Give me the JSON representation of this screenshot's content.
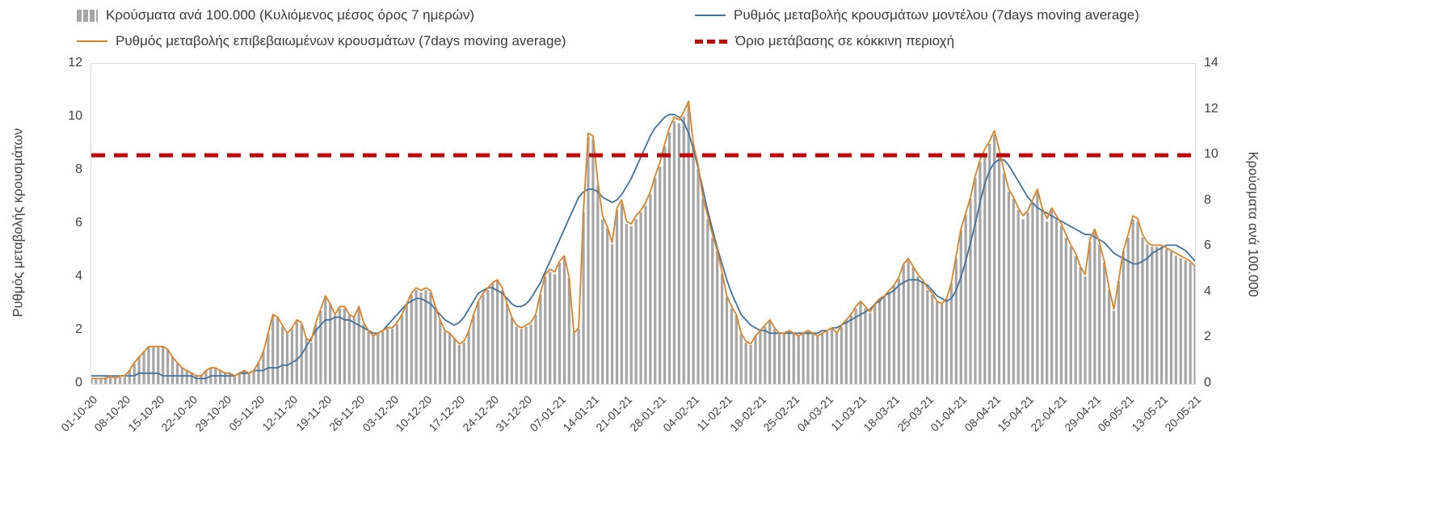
{
  "legend": [
    {
      "label": "Κρούσματα ανά 100.000 (Κυλιόμενος μέσος όρος 7 ημερών)",
      "type": "bar",
      "color": "#a6a6a6"
    },
    {
      "label": "Ρυθμός μεταβολής κρουσμάτων μοντέλου (7days moving average)",
      "type": "line",
      "color": "#41719c"
    },
    {
      "label": "Ρυθμός μεταβολής επιβεβαιωμένων κρουσμάτων (7days moving average)",
      "type": "line",
      "color": "#dd8327"
    },
    {
      "label": "Όριο μετάβασης σε κόκκινη περιοχή",
      "type": "dashed",
      "color": "#c00000"
    }
  ],
  "chart_data": {
    "type": "bar",
    "subtype": "combo-bar-and-lines",
    "points": 232,
    "x_start": "01-10-20",
    "x_end": "20-05-21",
    "x_tick_every_days": 7,
    "x_tick_labels": [
      "01-10-20",
      "08-10-20",
      "15-10-20",
      "22-10-20",
      "29-10-20",
      "05-11-20",
      "12-11-20",
      "19-11-20",
      "26-11-20",
      "03-12-20",
      "10-12-20",
      "17-12-20",
      "24-12-20",
      "31-12-20",
      "07-01-21",
      "14-01-21",
      "21-01-21",
      "28-01-21",
      "04-02-21",
      "11-02-21",
      "18-02-21",
      "25-02-21",
      "04-03-21",
      "11-03-21",
      "18-03-21",
      "25-03-21",
      "01-04-21",
      "08-04-21",
      "15-04-21",
      "22-04-21",
      "29-04-21",
      "06-05-21",
      "13-05-21",
      "20-05-21"
    ],
    "left_axis": {
      "title": "Ρυθμός μεταβολής κρουσμάτων",
      "range": [
        0,
        12
      ],
      "ticks": [
        0,
        2,
        4,
        6,
        8,
        10,
        12
      ]
    },
    "right_axis": {
      "title": "Κρούσματα ανά 100.000",
      "range": [
        0,
        14
      ],
      "ticks": [
        0,
        2,
        4,
        6,
        8,
        10,
        12,
        14
      ]
    },
    "grid": false,
    "legend_position": "top",
    "threshold": {
      "label": "Όριο μετάβασης σε κόκκινη περιοχή",
      "axis": "right",
      "value_right_axis": 10,
      "value_left_axis": 8.57,
      "color": "#c00000"
    },
    "series": [
      {
        "name": "Κρούσματα ανά 100.000 (Κυλιόμενος μέσος όρος 7 ημερών)",
        "type": "bar",
        "axis": "right",
        "color": "#a6a6a6",
        "values": [
          0.2,
          0.2,
          0.2,
          0.3,
          0.3,
          0.3,
          0.3,
          0.3,
          0.6,
          0.9,
          1.2,
          1.4,
          1.6,
          1.6,
          1.6,
          1.6,
          1.5,
          1.2,
          0.9,
          0.7,
          0.6,
          0.5,
          0.4,
          0.4,
          0.6,
          0.7,
          0.7,
          0.6,
          0.5,
          0.5,
          0.4,
          0.5,
          0.6,
          0.5,
          0.6,
          0.9,
          1.4,
          2.2,
          3.0,
          2.9,
          2.5,
          2.2,
          2.4,
          2.8,
          2.6,
          2.0,
          1.8,
          2.6,
          3.2,
          3.8,
          3.5,
          3.0,
          3.3,
          3.3,
          3.0,
          2.9,
          3.3,
          2.6,
          2.3,
          2.1,
          2.2,
          2.3,
          2.4,
          2.4,
          2.6,
          3.0,
          3.5,
          3.9,
          4.1,
          4.0,
          4.1,
          4.0,
          3.3,
          2.8,
          2.3,
          2.2,
          2.0,
          1.7,
          1.8,
          2.3,
          3.0,
          3.6,
          3.9,
          4.1,
          4.4,
          4.5,
          4.1,
          3.5,
          2.9,
          2.5,
          2.4,
          2.5,
          2.6,
          3.0,
          3.9,
          4.7,
          4.9,
          4.8,
          5.3,
          5.5,
          4.6,
          2.2,
          2.4,
          7.5,
          10.8,
          10.7,
          8.7,
          7.2,
          6.8,
          6.1,
          7.6,
          7.9,
          7.0,
          6.9,
          7.2,
          7.5,
          7.8,
          8.3,
          9.0,
          9.5,
          10.4,
          11.0,
          11.5,
          11.4,
          11.7,
          12.2,
          10.4,
          9.4,
          8.1,
          7.2,
          6.4,
          5.8,
          4.8,
          3.8,
          3.3,
          3.0,
          2.2,
          1.8,
          1.7,
          2.1,
          2.3,
          2.5,
          2.8,
          2.4,
          2.2,
          2.2,
          2.3,
          2.2,
          2.1,
          2.2,
          2.3,
          2.2,
          2.1,
          2.2,
          2.3,
          2.4,
          2.2,
          2.5,
          2.8,
          3.0,
          3.3,
          3.6,
          3.3,
          3.1,
          3.5,
          3.7,
          3.8,
          4.0,
          4.3,
          4.6,
          5.2,
          5.4,
          5.1,
          4.7,
          4.5,
          4.1,
          3.9,
          3.6,
          3.5,
          3.7,
          4.4,
          5.5,
          6.7,
          7.4,
          8.1,
          9.0,
          9.7,
          10.1,
          10.5,
          10.9,
          10.1,
          9.2,
          8.4,
          8.1,
          7.6,
          7.2,
          7.5,
          7.9,
          8.4,
          7.6,
          7.1,
          7.6,
          7.2,
          6.9,
          6.4,
          6.0,
          5.6,
          5.1,
          4.7,
          6.2,
          6.7,
          6.1,
          5.3,
          4.1,
          3.2,
          4.5,
          5.8,
          6.4,
          7.2,
          7.1,
          6.4,
          6.1,
          6.0,
          6.0,
          6.0,
          5.9,
          5.8,
          5.6,
          5.5,
          5.4,
          5.3,
          5.1
        ]
      },
      {
        "name": "Ρυθμός μεταβολής κρουσμάτων μοντέλου (7days moving average)",
        "type": "line",
        "axis": "left",
        "color": "#41719c",
        "values": [
          0.3,
          0.3,
          0.3,
          0.3,
          0.3,
          0.3,
          0.3,
          0.3,
          0.3,
          0.3,
          0.4,
          0.4,
          0.4,
          0.4,
          0.4,
          0.3,
          0.3,
          0.3,
          0.3,
          0.3,
          0.3,
          0.3,
          0.2,
          0.2,
          0.2,
          0.3,
          0.3,
          0.3,
          0.3,
          0.3,
          0.3,
          0.4,
          0.4,
          0.4,
          0.5,
          0.5,
          0.5,
          0.6,
          0.6,
          0.6,
          0.7,
          0.7,
          0.8,
          0.9,
          1.1,
          1.4,
          1.7,
          2.0,
          2.2,
          2.4,
          2.4,
          2.5,
          2.5,
          2.4,
          2.4,
          2.3,
          2.2,
          2.1,
          2.0,
          1.9,
          1.9,
          2.0,
          2.2,
          2.4,
          2.6,
          2.8,
          3.0,
          3.1,
          3.2,
          3.2,
          3.1,
          3.0,
          2.8,
          2.6,
          2.4,
          2.3,
          2.2,
          2.3,
          2.5,
          2.8,
          3.1,
          3.4,
          3.5,
          3.6,
          3.6,
          3.5,
          3.4,
          3.2,
          3.0,
          2.9,
          2.9,
          3.0,
          3.2,
          3.5,
          3.8,
          4.2,
          4.6,
          5.0,
          5.4,
          5.8,
          6.2,
          6.6,
          7.0,
          7.2,
          7.3,
          7.3,
          7.2,
          7.0,
          6.9,
          6.8,
          6.9,
          7.1,
          7.4,
          7.7,
          8.1,
          8.5,
          8.9,
          9.3,
          9.6,
          9.8,
          10.0,
          10.1,
          10.1,
          10.0,
          9.8,
          9.4,
          8.8,
          8.1,
          7.3,
          6.5,
          5.8,
          5.1,
          4.5,
          3.9,
          3.4,
          3.0,
          2.6,
          2.4,
          2.2,
          2.1,
          2.0,
          2.0,
          1.9,
          1.9,
          1.9,
          1.9,
          1.9,
          1.9,
          1.9,
          1.9,
          1.9,
          1.9,
          1.9,
          2.0,
          2.0,
          2.1,
          2.1,
          2.2,
          2.3,
          2.4,
          2.5,
          2.6,
          2.7,
          2.8,
          3.0,
          3.1,
          3.3,
          3.4,
          3.5,
          3.7,
          3.8,
          3.9,
          3.9,
          3.9,
          3.8,
          3.7,
          3.5,
          3.3,
          3.2,
          3.1,
          3.2,
          3.5,
          4.0,
          4.6,
          5.3,
          6.0,
          6.8,
          7.5,
          8.0,
          8.3,
          8.4,
          8.4,
          8.2,
          7.9,
          7.6,
          7.3,
          7.0,
          6.8,
          6.6,
          6.5,
          6.4,
          6.3,
          6.2,
          6.1,
          6.0,
          5.9,
          5.8,
          5.7,
          5.6,
          5.6,
          5.5,
          5.4,
          5.3,
          5.1,
          4.9,
          4.8,
          4.7,
          4.6,
          4.5,
          4.5,
          4.6,
          4.7,
          4.9,
          5.0,
          5.1,
          5.2,
          5.2,
          5.2,
          5.1,
          5.0,
          4.8,
          4.6
        ]
      },
      {
        "name": "Ρυθμός μεταβολής επιβεβαιωμένων κρουσμάτων (7days moving average)",
        "type": "line",
        "axis": "left",
        "color": "#dd8327",
        "values": [
          0.2,
          0.2,
          0.2,
          0.2,
          0.3,
          0.2,
          0.3,
          0.3,
          0.5,
          0.8,
          1.0,
          1.2,
          1.4,
          1.4,
          1.4,
          1.4,
          1.3,
          1.0,
          0.8,
          0.6,
          0.5,
          0.4,
          0.3,
          0.3,
          0.5,
          0.6,
          0.6,
          0.5,
          0.4,
          0.4,
          0.3,
          0.4,
          0.5,
          0.4,
          0.5,
          0.8,
          1.2,
          1.9,
          2.6,
          2.5,
          2.2,
          1.9,
          2.1,
          2.4,
          2.3,
          1.7,
          1.6,
          2.3,
          2.8,
          3.3,
          3.0,
          2.6,
          2.9,
          2.9,
          2.6,
          2.5,
          2.9,
          2.3,
          2.0,
          1.8,
          1.9,
          2.0,
          2.1,
          2.1,
          2.3,
          2.6,
          3.0,
          3.4,
          3.6,
          3.5,
          3.6,
          3.5,
          2.9,
          2.4,
          2.0,
          1.9,
          1.7,
          1.5,
          1.6,
          2.0,
          2.6,
          3.1,
          3.4,
          3.6,
          3.8,
          3.9,
          3.6,
          3.0,
          2.5,
          2.2,
          2.1,
          2.2,
          2.3,
          2.6,
          3.4,
          4.1,
          4.3,
          4.2,
          4.6,
          4.8,
          4.0,
          1.9,
          2.1,
          6.5,
          9.4,
          9.3,
          7.6,
          6.3,
          5.9,
          5.3,
          6.6,
          6.9,
          6.1,
          6.0,
          6.3,
          6.5,
          6.8,
          7.2,
          7.8,
          8.3,
          9.0,
          9.6,
          10.0,
          9.9,
          10.2,
          10.6,
          9.0,
          8.2,
          7.0,
          6.3,
          5.6,
          5.0,
          4.2,
          3.3,
          2.9,
          2.6,
          1.9,
          1.6,
          1.5,
          1.8,
          2.0,
          2.2,
          2.4,
          2.1,
          1.9,
          1.9,
          2.0,
          1.9,
          1.8,
          1.9,
          2.0,
          1.9,
          1.8,
          1.9,
          2.0,
          2.1,
          1.9,
          2.2,
          2.4,
          2.6,
          2.9,
          3.1,
          2.9,
          2.7,
          3.0,
          3.2,
          3.3,
          3.5,
          3.7,
          4.0,
          4.5,
          4.7,
          4.4,
          4.1,
          3.9,
          3.6,
          3.4,
          3.1,
          3.0,
          3.2,
          3.8,
          4.8,
          5.8,
          6.4,
          7.0,
          7.8,
          8.4,
          8.8,
          9.1,
          9.5,
          8.8,
          8.0,
          7.3,
          7.0,
          6.6,
          6.3,
          6.5,
          6.9,
          7.3,
          6.6,
          6.2,
          6.6,
          6.3,
          6.0,
          5.6,
          5.2,
          4.9,
          4.4,
          4.1,
          5.4,
          5.8,
          5.3,
          4.6,
          3.6,
          2.8,
          3.9,
          5.0,
          5.6,
          6.3,
          6.2,
          5.6,
          5.3,
          5.2,
          5.2,
          5.2,
          5.1,
          5.0,
          4.9,
          4.8,
          4.7,
          4.6,
          4.4
        ]
      }
    ]
  }
}
